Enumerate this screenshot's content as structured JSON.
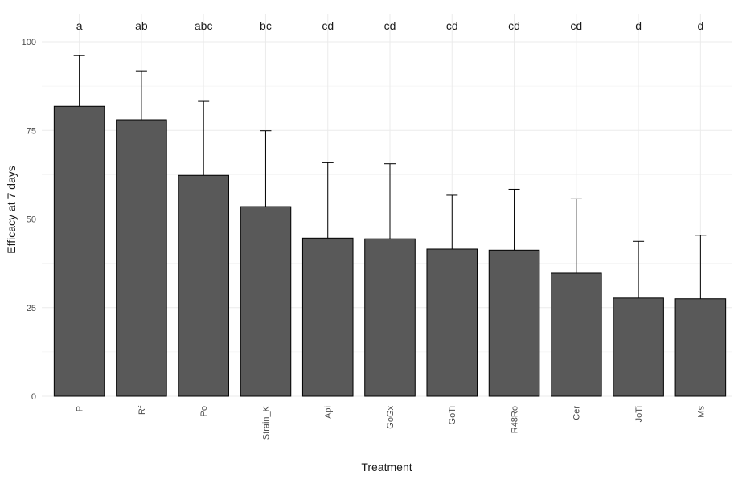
{
  "chart_data": {
    "type": "bar",
    "xlabel": "Treatment",
    "ylabel": "Efficacy at 7 days",
    "ylim": [
      0,
      100
    ],
    "yticks": [
      0,
      25,
      50,
      75,
      100
    ],
    "categories": [
      "P",
      "Rf",
      "Po",
      "Strain_K",
      "Api",
      "GoGx",
      "GoTi",
      "R48Ro",
      "Cer",
      "JoTi",
      "Ms"
    ],
    "values": [
      81.8,
      78.0,
      62.3,
      53.5,
      44.6,
      44.4,
      41.5,
      41.2,
      34.7,
      27.7,
      27.5
    ],
    "error_upper": [
      96.1,
      91.8,
      83.2,
      74.9,
      65.9,
      65.6,
      56.7,
      58.4,
      55.7,
      43.7,
      45.4
    ],
    "significance_letters": [
      "a",
      "ab",
      "abc",
      "bc",
      "cd",
      "cd",
      "cd",
      "cd",
      "cd",
      "d",
      "d"
    ],
    "grid": true,
    "bar_color": "#595959",
    "bar_outline": "#000000",
    "gridline_color": "#ebebeb"
  }
}
